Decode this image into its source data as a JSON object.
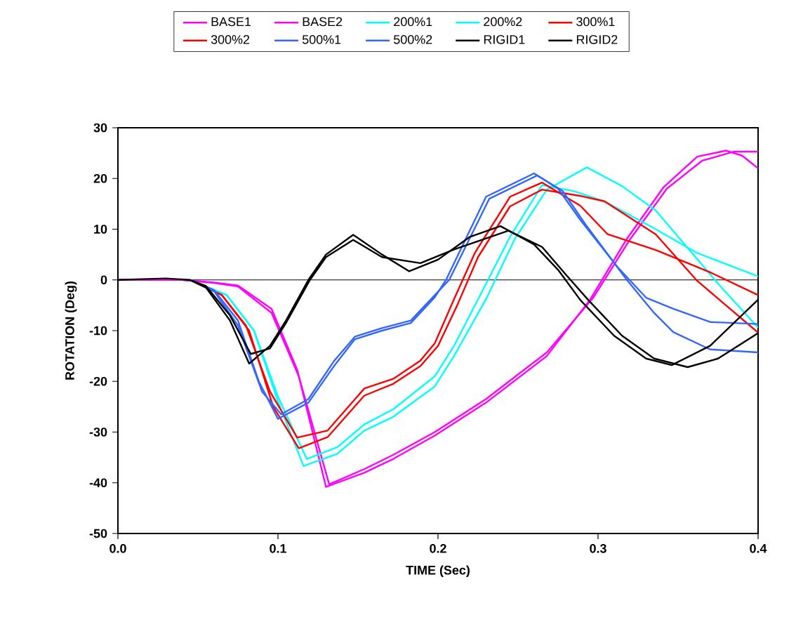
{
  "chart_data": {
    "type": "line",
    "xlabel": "TIME (Sec)",
    "ylabel": "ROTATION (Deg)",
    "xlim": [
      0,
      0.4
    ],
    "ylim": [
      -50,
      30
    ],
    "xticks": [
      {
        "value": 0,
        "label": "0.0"
      },
      0.1,
      0.2,
      0.3,
      0.4
    ],
    "yticks": [
      -50,
      -40,
      -30,
      -20,
      -10,
      0,
      10,
      20,
      30
    ],
    "legend": "top",
    "grid": false,
    "marker": "none",
    "line_style": "solid",
    "ref_lines": [
      {
        "axis": "y",
        "value": 0,
        "color": "#000000"
      }
    ],
    "series": [
      {
        "name": "BASE1",
        "color": "#ff00ff",
        "x": [
          0,
          0.04,
          0.06,
          0.075,
          0.096,
          0.112,
          0.13,
          0.154,
          0.172,
          0.198,
          0.23,
          0.268,
          0.295,
          0.318,
          0.341,
          0.362,
          0.38,
          0.39,
          0.4
        ],
        "values": [
          0,
          0,
          -0.5,
          -1.1,
          -5.7,
          -17.7,
          -40.8,
          -38,
          -35.3,
          -30.7,
          -24.2,
          -15,
          -3.9,
          8.1,
          18.3,
          24.3,
          25.5,
          24.5,
          22
        ]
      },
      {
        "name": "BASE2",
        "color": "#ff00ff",
        "x": [
          0,
          0.04,
          0.06,
          0.075,
          0.096,
          0.113,
          0.132,
          0.154,
          0.172,
          0.198,
          0.23,
          0.268,
          0.297,
          0.32,
          0.343,
          0.365,
          0.385,
          0.4
        ],
        "values": [
          0,
          0,
          -0.6,
          -1.3,
          -6.5,
          -19,
          -40.3,
          -37.3,
          -34.5,
          -30,
          -23.5,
          -14.3,
          -3.5,
          8,
          18,
          23.5,
          25.3,
          25.3
        ]
      },
      {
        "name": "200%1",
        "color": "#00ffff",
        "x": [
          0.045,
          0.068,
          0.085,
          0.1,
          0.116,
          0.137,
          0.154,
          0.172,
          0.198,
          0.21,
          0.23,
          0.248,
          0.268,
          0.293,
          0.315,
          0.336,
          0.376,
          0.4
        ],
        "values": [
          0,
          -3,
          -10,
          -24,
          -36.7,
          -34.3,
          -29.7,
          -27,
          -21,
          -15,
          -3.8,
          8.1,
          17.8,
          22.2,
          18.5,
          13.7,
          -1.1,
          -9.4
        ]
      },
      {
        "name": "200%2",
        "color": "#00ffff",
        "x": [
          0.045,
          0.068,
          0.085,
          0.1,
          0.118,
          0.137,
          0.154,
          0.172,
          0.198,
          0.21,
          0.228,
          0.245,
          0.265,
          0.285,
          0.304,
          0.336,
          0.362,
          0.4
        ],
        "values": [
          0,
          -3,
          -10,
          -23,
          -35.3,
          -33,
          -28.5,
          -25.5,
          -19,
          -13,
          -2,
          8.5,
          18.7,
          17.5,
          15.5,
          10,
          5.3,
          0.7
        ]
      },
      {
        "name": "300%1",
        "color": "#ff0000",
        "x": [
          0.045,
          0.065,
          0.08,
          0.095,
          0.112,
          0.131,
          0.154,
          0.172,
          0.189,
          0.198,
          0.21,
          0.223,
          0.245,
          0.265,
          0.289,
          0.306,
          0.336,
          0.37,
          0.4
        ],
        "values": [
          0,
          -3,
          -9,
          -22,
          -31.1,
          -29.7,
          -21.4,
          -19.5,
          -15.9,
          -12.5,
          -3.8,
          5.3,
          16.4,
          19.2,
          14.6,
          9,
          5.9,
          1.5,
          -3
        ]
      },
      {
        "name": "300%2",
        "color": "#ff0000",
        "x": [
          0.045,
          0.065,
          0.082,
          0.097,
          0.113,
          0.131,
          0.154,
          0.172,
          0.189,
          0.2,
          0.212,
          0.225,
          0.245,
          0.265,
          0.29,
          0.304,
          0.336,
          0.362,
          0.4
        ],
        "values": [
          0,
          -3,
          -10,
          -25,
          -33.2,
          -31,
          -22.8,
          -20.5,
          -17,
          -13,
          -5,
          4.5,
          14.5,
          17.8,
          16.5,
          15.5,
          9,
          -0.2,
          -10.4
        ]
      },
      {
        "name": "500%1",
        "color": "#3366ff",
        "x": [
          0.045,
          0.06,
          0.075,
          0.088,
          0.1,
          0.119,
          0.135,
          0.148,
          0.165,
          0.183,
          0.198,
          0.205,
          0.23,
          0.26,
          0.275,
          0.289,
          0.312,
          0.33,
          0.347,
          0.37,
          0.4
        ],
        "values": [
          0,
          -2,
          -8,
          -20,
          -27.4,
          -24.2,
          -17,
          -11.7,
          -10,
          -8.5,
          -3.4,
          0,
          16.4,
          21,
          18,
          11.8,
          2.6,
          -3.5,
          -5.7,
          -8.3,
          -8.7
        ]
      },
      {
        "name": "500%2",
        "color": "#3366ff",
        "x": [
          0.045,
          0.06,
          0.075,
          0.09,
          0.102,
          0.119,
          0.135,
          0.148,
          0.165,
          0.183,
          0.198,
          0.207,
          0.232,
          0.262,
          0.278,
          0.292,
          0.318,
          0.335,
          0.347,
          0.37,
          0.4
        ],
        "values": [
          0,
          -2.2,
          -9,
          -22,
          -26.5,
          -23.5,
          -16,
          -11.2,
          -9.5,
          -8,
          -3,
          0,
          16,
          20.6,
          17.5,
          11,
          0,
          -6.5,
          -10.3,
          -13.7,
          -14.3
        ]
      },
      {
        "name": "RIGID1",
        "color": "#000000",
        "x": [
          0.045,
          0.055,
          0.07,
          0.082,
          0.095,
          0.105,
          0.119,
          0.13,
          0.147,
          0.165,
          0.182,
          0.2,
          0.22,
          0.239,
          0.26,
          0.275,
          0.289,
          0.31,
          0.33,
          0.346,
          0.37,
          0.4
        ],
        "values": [
          0,
          -1.5,
          -8,
          -16.5,
          -13,
          -8,
          0,
          5,
          8.9,
          5,
          1.7,
          4,
          8.5,
          10.6,
          7,
          2,
          -4,
          -11,
          -15.5,
          -16.8,
          -13,
          -3.9
        ]
      },
      {
        "name": "RIGID2",
        "color": "#000000",
        "x": [
          0,
          0.03,
          0.045,
          0.055,
          0.07,
          0.083,
          0.095,
          0.105,
          0.12,
          0.13,
          0.147,
          0.165,
          0.189,
          0.21,
          0.244,
          0.265,
          0.28,
          0.294,
          0.315,
          0.335,
          0.356,
          0.375,
          0.4
        ],
        "values": [
          0,
          0.3,
          0,
          -1.2,
          -7,
          -14.6,
          -13.5,
          -8.5,
          0,
          4.5,
          7.9,
          4.5,
          3.3,
          6,
          9.7,
          6.5,
          1,
          -4,
          -11,
          -15.5,
          -17.2,
          -15.5,
          -10.5
        ]
      }
    ]
  }
}
